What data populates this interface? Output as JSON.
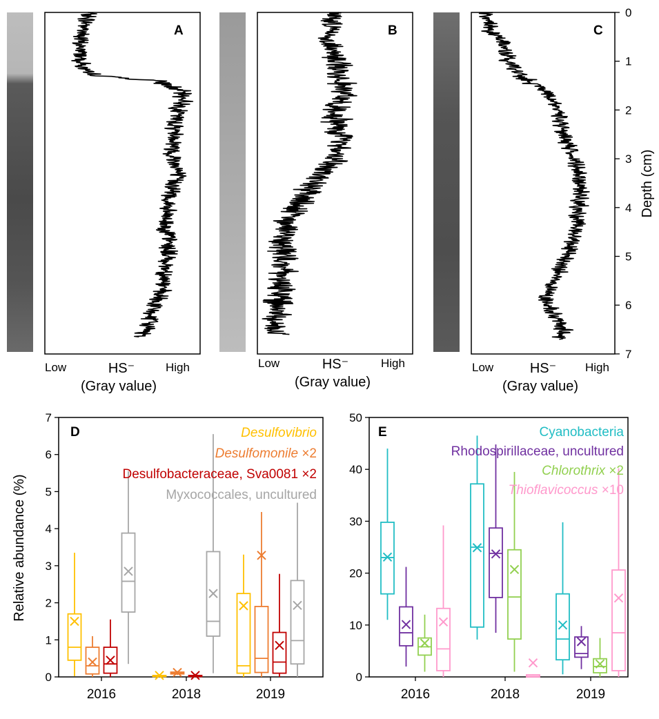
{
  "chart_data": [
    {
      "type": "line",
      "panel": "A",
      "xlabel": "HS⁻",
      "xlabel_sub": "(Gray value)",
      "x_ticks": [
        "Low",
        "High"
      ],
      "x_unit_note": "relative gray value, 0 = Low, 1 = High",
      "depth_cm": [
        0.0,
        0.3,
        0.6,
        0.9,
        1.2,
        1.3,
        1.4,
        1.5,
        1.6,
        1.8,
        2.0,
        2.3,
        2.6,
        2.9,
        3.2,
        3.5,
        3.8,
        4.1,
        4.4,
        4.7,
        5.0,
        5.3,
        5.6,
        5.9,
        6.2,
        6.5,
        6.65
      ],
      "hs_gray": [
        0.28,
        0.26,
        0.22,
        0.24,
        0.24,
        0.35,
        0.72,
        0.8,
        0.87,
        0.9,
        0.86,
        0.84,
        0.84,
        0.82,
        0.86,
        0.84,
        0.8,
        0.78,
        0.78,
        0.8,
        0.79,
        0.78,
        0.76,
        0.72,
        0.68,
        0.66,
        0.62
      ]
    },
    {
      "type": "line",
      "panel": "B",
      "xlabel": "HS⁻",
      "xlabel_sub": "(Gray value)",
      "x_ticks": [
        "Low",
        "High"
      ],
      "x_unit_note": "relative gray value, 0 = Low, 1 = High",
      "depth_cm": [
        0.0,
        0.3,
        0.6,
        0.9,
        1.2,
        1.5,
        1.8,
        2.1,
        2.4,
        2.7,
        3.0,
        3.3,
        3.6,
        3.9,
        4.2,
        4.5,
        4.8,
        5.1,
        5.4,
        5.7,
        6.0,
        6.3,
        6.6
      ],
      "hs_gray": [
        0.5,
        0.48,
        0.46,
        0.5,
        0.53,
        0.56,
        0.53,
        0.5,
        0.52,
        0.55,
        0.5,
        0.42,
        0.33,
        0.27,
        0.2,
        0.18,
        0.17,
        0.18,
        0.16,
        0.15,
        0.13,
        0.12,
        0.12
      ]
    },
    {
      "type": "line",
      "panel": "C",
      "xlabel": "HS⁻",
      "xlabel_sub": "(Gray value)",
      "x_ticks": [
        "Low",
        "High"
      ],
      "x_unit_note": "relative gray value, 0 = Low, 1 = High",
      "ylabel": "Depth (cm)",
      "ylim": [
        0,
        7
      ],
      "y_ticks": [
        "0",
        "1",
        "2",
        "3",
        "4",
        "5",
        "6",
        "7"
      ],
      "depth_cm": [
        0.0,
        0.2,
        0.4,
        0.6,
        0.8,
        1.0,
        1.2,
        1.4,
        1.6,
        1.8,
        2.0,
        2.3,
        2.6,
        2.9,
        3.2,
        3.5,
        3.8,
        4.1,
        4.4,
        4.7,
        5.0,
        5.3,
        5.6,
        5.9,
        6.2,
        6.5,
        6.7
      ],
      "hs_gray": [
        0.1,
        0.12,
        0.14,
        0.22,
        0.24,
        0.26,
        0.3,
        0.4,
        0.5,
        0.56,
        0.6,
        0.62,
        0.65,
        0.7,
        0.74,
        0.76,
        0.76,
        0.74,
        0.73,
        0.7,
        0.66,
        0.62,
        0.56,
        0.52,
        0.58,
        0.64,
        0.62
      ]
    },
    {
      "type": "box",
      "panel": "D",
      "ylabel": "Relative abundance (%)",
      "ylim": [
        0,
        7
      ],
      "y_ticks": [
        0,
        1,
        2,
        3,
        4,
        5,
        6,
        7
      ],
      "categories": [
        "2016",
        "2018",
        "2019"
      ],
      "series": [
        {
          "name": "Desulfovibrio",
          "italic": true,
          "color": "#FFC000",
          "boxes": [
            {
              "min": 0.02,
              "q1": 0.45,
              "median": 0.8,
              "q3": 1.7,
              "max": 3.35,
              "mean": 1.5
            },
            {
              "min": 0.0,
              "q1": 0.01,
              "median": 0.02,
              "q3": 0.04,
              "max": 0.07,
              "mean": 0.04
            },
            {
              "min": 0.0,
              "q1": 0.1,
              "median": 0.3,
              "q3": 2.25,
              "max": 3.3,
              "mean": 1.92
            }
          ]
        },
        {
          "name": "Desulfomonile ×2",
          "italic": true,
          "color": "#ED7D31",
          "boxes": [
            {
              "min": 0.0,
              "q1": 0.08,
              "median": 0.3,
              "q3": 0.8,
              "max": 1.1,
              "mean": 0.4
            },
            {
              "min": 0.05,
              "q1": 0.08,
              "median": 0.1,
              "q3": 0.13,
              "max": 0.16,
              "mean": 0.12
            },
            {
              "min": 0.0,
              "q1": 0.12,
              "median": 0.5,
              "q3": 1.9,
              "max": 4.45,
              "mean": 3.28
            }
          ]
        },
        {
          "name": "Desulfobacteraceae, Sva0081 ×2",
          "italic": false,
          "color": "#C00000",
          "boxes": [
            {
              "min": 0.0,
              "q1": 0.1,
              "median": 0.35,
              "q3": 0.8,
              "max": 1.55,
              "mean": 0.45
            },
            {
              "min": 0.0,
              "q1": 0.01,
              "median": 0.02,
              "q3": 0.04,
              "max": 0.08,
              "mean": 0.04
            },
            {
              "min": 0.0,
              "q1": 0.1,
              "median": 0.4,
              "q3": 1.2,
              "max": 2.78,
              "mean": 0.85
            }
          ]
        },
        {
          "name": "Myxococcales, uncultured",
          "italic": false,
          "color": "#A6A6A6",
          "boxes": [
            {
              "min": 0.35,
              "q1": 1.75,
              "median": 2.58,
              "q3": 3.88,
              "max": 5.55,
              "mean": 2.85
            },
            {
              "min": 0.1,
              "q1": 1.1,
              "median": 1.5,
              "q3": 3.38,
              "max": 6.55,
              "mean": 2.25
            },
            {
              "min": 0.0,
              "q1": 0.35,
              "median": 0.98,
              "q3": 2.6,
              "max": 4.7,
              "mean": 1.93
            }
          ]
        }
      ]
    },
    {
      "type": "box",
      "panel": "E",
      "ylim": [
        0,
        50
      ],
      "y_ticks": [
        0,
        10,
        20,
        30,
        40,
        50
      ],
      "categories": [
        "2016",
        "2018",
        "2019"
      ],
      "series": [
        {
          "name": "Cyanobacteria",
          "italic": false,
          "color": "#21BDC4",
          "boxes": [
            {
              "min": 11.0,
              "q1": 16.0,
              "median": 23.0,
              "q3": 29.8,
              "max": 44.0,
              "mean": 23.1
            },
            {
              "min": 7.2,
              "q1": 9.6,
              "median": 25.0,
              "q3": 37.2,
              "max": 46.5,
              "mean": 24.9
            },
            {
              "min": 0.5,
              "q1": 3.3,
              "median": 7.3,
              "q3": 16.0,
              "max": 29.8,
              "mean": 10.0
            }
          ]
        },
        {
          "name": "Rhodospirillaceae, uncultured",
          "italic": false,
          "color": "#7030A0",
          "boxes": [
            {
              "min": 2.0,
              "q1": 6.0,
              "median": 8.5,
              "q3": 13.5,
              "max": 21.2,
              "mean": 10.1
            },
            {
              "min": 8.5,
              "q1": 15.3,
              "median": 23.8,
              "q3": 28.7,
              "max": 44.8,
              "mean": 23.7
            },
            {
              "min": 1.5,
              "q1": 3.8,
              "median": 4.5,
              "q3": 7.7,
              "max": 9.8,
              "mean": 6.8
            }
          ]
        },
        {
          "name": "Chlorothrix ×2",
          "italic": true,
          "color": "#92D050",
          "boxes": [
            {
              "min": 1.0,
              "q1": 4.2,
              "median": 5.8,
              "q3": 7.5,
              "max": 12.0,
              "mean": 6.5
            },
            {
              "min": 1.0,
              "q1": 7.3,
              "median": 15.4,
              "q3": 24.5,
              "max": 39.5,
              "mean": 20.7
            },
            {
              "min": 0.0,
              "q1": 0.8,
              "median": 2.0,
              "q3": 3.5,
              "max": 7.5,
              "mean": 2.5
            }
          ]
        },
        {
          "name": "Thioflavicoccus ×10",
          "italic": true,
          "color": "#FF99CC",
          "boxes": [
            {
              "min": 0.0,
              "q1": 1.2,
              "median": 5.4,
              "q3": 13.2,
              "max": 29.2,
              "mean": 10.6
            },
            {
              "min": 0.0,
              "q1": 0.0,
              "median": 0.1,
              "q3": 0.4,
              "max": 0.5,
              "mean": 2.7
            },
            {
              "min": 0.0,
              "q1": 1.2,
              "median": 8.5,
              "q3": 20.6,
              "max": 40.2,
              "mean": 15.2
            }
          ]
        }
      ]
    }
  ]
}
